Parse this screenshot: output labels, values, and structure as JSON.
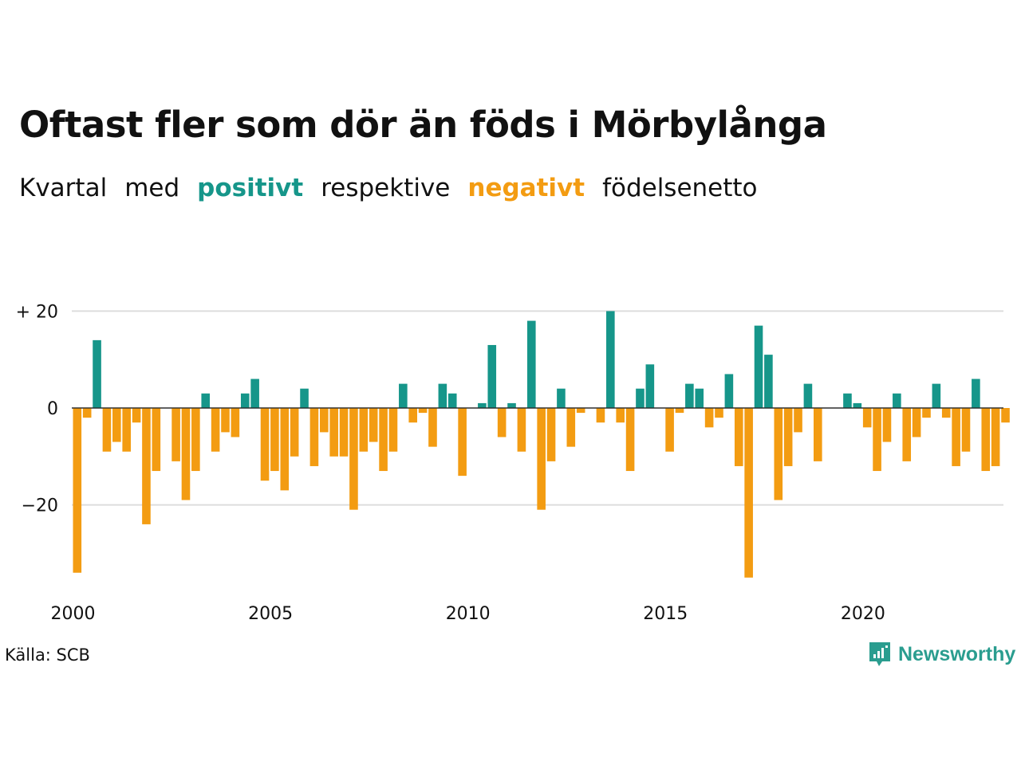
{
  "title": "Oftast fler som dör än föds i Mörbylånga",
  "subtitle": {
    "w1": "Kvartal",
    "w2": "med",
    "positive": "positivt",
    "w3": "respektive",
    "negative": "negativt",
    "w4": "födelsenetto"
  },
  "source": "Källa: SCB",
  "brand": "Newsworthy",
  "colors": {
    "positive": "#16968a",
    "negative": "#f39c12",
    "grid": "#dddddd",
    "brand": "#2a9d8f"
  },
  "chart_data": {
    "type": "bar",
    "start_year": 2000,
    "periods_per_year": 4,
    "ylim": [
      -35,
      20
    ],
    "yticks": [
      20,
      0,
      -20
    ],
    "ytick_labels": [
      "+ 20",
      "0",
      "−20"
    ],
    "xticks": [
      2000,
      2005,
      2010,
      2015,
      2020
    ],
    "grid": true,
    "values": [
      -34,
      -2,
      14,
      -9,
      -7,
      -9,
      -3,
      -24,
      -13,
      0,
      -11,
      -19,
      -13,
      3,
      -9,
      -5,
      -6,
      3,
      6,
      -15,
      -13,
      -17,
      -10,
      4,
      -12,
      -5,
      -10,
      -10,
      -21,
      -9,
      -7,
      -13,
      -9,
      5,
      -3,
      -1,
      -8,
      5,
      3,
      -14,
      0,
      1,
      13,
      -6,
      1,
      -9,
      18,
      -21,
      -11,
      4,
      -8,
      -1,
      0,
      -3,
      20,
      -3,
      -13,
      4,
      9,
      0,
      -9,
      -1,
      5,
      4,
      -4,
      -2,
      7,
      -12,
      -35,
      17,
      11,
      -19,
      -12,
      -5,
      5,
      -11,
      0,
      0,
      3,
      1,
      -4,
      -13,
      -7,
      3,
      -11,
      -6,
      -2,
      5,
      -2,
      -12,
      -9,
      6,
      -13,
      -12,
      -3
    ]
  }
}
